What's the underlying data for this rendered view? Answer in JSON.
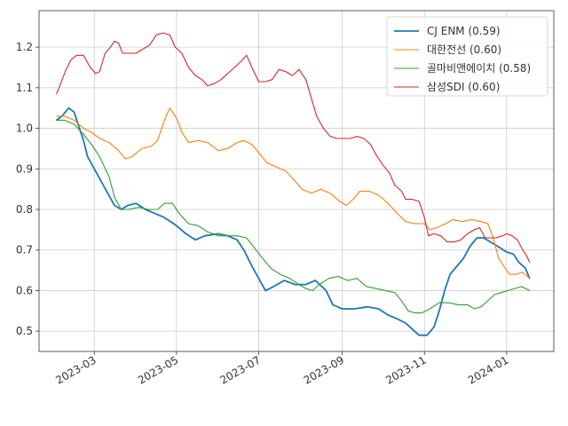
{
  "chart_data": {
    "type": "line",
    "title": "",
    "xlabel": "",
    "ylabel": "",
    "xlim": [
      "2023-01-19",
      "2024-02-05"
    ],
    "ylim": [
      0.45,
      1.29
    ],
    "grid": true,
    "legend_position": "top-right",
    "x_ticks": [
      {
        "date": "2023-03-01",
        "label": "2023-03"
      },
      {
        "date": "2023-05-01",
        "label": "2023-05"
      },
      {
        "date": "2023-07-01",
        "label": "2023-07"
      },
      {
        "date": "2023-09-01",
        "label": "2023-09"
      },
      {
        "date": "2023-11-01",
        "label": "2023-11"
      },
      {
        "date": "2024-01-01",
        "label": "2024-01"
      }
    ],
    "y_ticks": [
      {
        "value": 0.5,
        "label": "0.5"
      },
      {
        "value": 0.6,
        "label": "0.6"
      },
      {
        "value": 0.7,
        "label": "0.7"
      },
      {
        "value": 0.8,
        "label": "0.8"
      },
      {
        "value": 0.9,
        "label": "0.9"
      },
      {
        "value": 1.0,
        "label": "1.0"
      },
      {
        "value": 1.1,
        "label": "1.1"
      },
      {
        "value": 1.2,
        "label": "1.2"
      }
    ],
    "series": [
      {
        "name": "CJ ENM (0.59)",
        "color": "#1f77b4",
        "points": [
          [
            "2023-02-01",
            1.02
          ],
          [
            "2023-02-05",
            1.03
          ],
          [
            "2023-02-10",
            1.05
          ],
          [
            "2023-02-14",
            1.04
          ],
          [
            "2023-02-17",
            1.01
          ],
          [
            "2023-02-21",
            0.97
          ],
          [
            "2023-02-24",
            0.93
          ],
          [
            "2023-03-01",
            0.9
          ],
          [
            "2023-03-06",
            0.87
          ],
          [
            "2023-03-11",
            0.84
          ],
          [
            "2023-03-16",
            0.81
          ],
          [
            "2023-03-21",
            0.8
          ],
          [
            "2023-03-26",
            0.81
          ],
          [
            "2023-04-01",
            0.815
          ],
          [
            "2023-04-08",
            0.8
          ],
          [
            "2023-04-15",
            0.79
          ],
          [
            "2023-04-22",
            0.78
          ],
          [
            "2023-05-01",
            0.76
          ],
          [
            "2023-05-08",
            0.74
          ],
          [
            "2023-05-15",
            0.725
          ],
          [
            "2023-05-22",
            0.735
          ],
          [
            "2023-06-01",
            0.74
          ],
          [
            "2023-06-08",
            0.735
          ],
          [
            "2023-06-15",
            0.725
          ],
          [
            "2023-06-20",
            0.7
          ],
          [
            "2023-06-26",
            0.66
          ],
          [
            "2023-07-01",
            0.63
          ],
          [
            "2023-07-06",
            0.6
          ],
          [
            "2023-07-12",
            0.61
          ],
          [
            "2023-07-20",
            0.625
          ],
          [
            "2023-07-28",
            0.615
          ],
          [
            "2023-08-05",
            0.615
          ],
          [
            "2023-08-12",
            0.625
          ],
          [
            "2023-08-20",
            0.6
          ],
          [
            "2023-08-25",
            0.565
          ],
          [
            "2023-09-01",
            0.555
          ],
          [
            "2023-09-10",
            0.555
          ],
          [
            "2023-09-20",
            0.56
          ],
          [
            "2023-09-28",
            0.555
          ],
          [
            "2023-10-05",
            0.54
          ],
          [
            "2023-10-12",
            0.53
          ],
          [
            "2023-10-18",
            0.52
          ],
          [
            "2023-10-23",
            0.505
          ],
          [
            "2023-10-28",
            0.49
          ],
          [
            "2023-11-03",
            0.49
          ],
          [
            "2023-11-08",
            0.51
          ],
          [
            "2023-11-12",
            0.55
          ],
          [
            "2023-11-16",
            0.6
          ],
          [
            "2023-11-20",
            0.64
          ],
          [
            "2023-11-25",
            0.66
          ],
          [
            "2023-11-30",
            0.68
          ],
          [
            "2023-12-05",
            0.71
          ],
          [
            "2023-12-10",
            0.73
          ],
          [
            "2023-12-15",
            0.73
          ],
          [
            "2023-12-20",
            0.72
          ],
          [
            "2023-12-25",
            0.71
          ],
          [
            "2024-01-01",
            0.695
          ],
          [
            "2024-01-06",
            0.69
          ],
          [
            "2024-01-10",
            0.67
          ],
          [
            "2024-01-15",
            0.655
          ],
          [
            "2024-01-18",
            0.63
          ]
        ]
      },
      {
        "name": "대한전선 (0.60)",
        "color": "#ff7f0e",
        "points": [
          [
            "2023-02-01",
            1.03
          ],
          [
            "2023-02-07",
            1.03
          ],
          [
            "2023-02-14",
            1.02
          ],
          [
            "2023-02-21",
            1.0
          ],
          [
            "2023-02-27",
            0.99
          ],
          [
            "2023-03-05",
            0.975
          ],
          [
            "2023-03-12",
            0.965
          ],
          [
            "2023-03-19",
            0.945
          ],
          [
            "2023-03-24",
            0.925
          ],
          [
            "2023-03-29",
            0.93
          ],
          [
            "2023-04-05",
            0.95
          ],
          [
            "2023-04-12",
            0.955
          ],
          [
            "2023-04-17",
            0.97
          ],
          [
            "2023-04-22",
            1.02
          ],
          [
            "2023-04-26",
            1.05
          ],
          [
            "2023-05-01",
            1.025
          ],
          [
            "2023-05-05",
            0.99
          ],
          [
            "2023-05-10",
            0.965
          ],
          [
            "2023-05-17",
            0.97
          ],
          [
            "2023-05-24",
            0.965
          ],
          [
            "2023-06-01",
            0.945
          ],
          [
            "2023-06-08",
            0.95
          ],
          [
            "2023-06-15",
            0.965
          ],
          [
            "2023-06-20",
            0.97
          ],
          [
            "2023-06-26",
            0.96
          ],
          [
            "2023-07-01",
            0.94
          ],
          [
            "2023-07-07",
            0.915
          ],
          [
            "2023-07-14",
            0.905
          ],
          [
            "2023-07-21",
            0.895
          ],
          [
            "2023-07-28",
            0.87
          ],
          [
            "2023-08-02",
            0.85
          ],
          [
            "2023-08-09",
            0.84
          ],
          [
            "2023-08-16",
            0.85
          ],
          [
            "2023-08-23",
            0.84
          ],
          [
            "2023-08-30",
            0.82
          ],
          [
            "2023-09-04",
            0.81
          ],
          [
            "2023-09-09",
            0.825
          ],
          [
            "2023-09-14",
            0.845
          ],
          [
            "2023-09-21",
            0.845
          ],
          [
            "2023-09-28",
            0.835
          ],
          [
            "2023-10-05",
            0.815
          ],
          [
            "2023-10-12",
            0.79
          ],
          [
            "2023-10-18",
            0.77
          ],
          [
            "2023-10-25",
            0.765
          ],
          [
            "2023-11-01",
            0.765
          ],
          [
            "2023-11-05",
            0.75
          ],
          [
            "2023-11-10",
            0.755
          ],
          [
            "2023-11-17",
            0.765
          ],
          [
            "2023-11-22",
            0.775
          ],
          [
            "2023-11-29",
            0.77
          ],
          [
            "2023-12-06",
            0.775
          ],
          [
            "2023-12-13",
            0.77
          ],
          [
            "2023-12-18",
            0.765
          ],
          [
            "2023-12-22",
            0.73
          ],
          [
            "2023-12-26",
            0.68
          ],
          [
            "2023-12-30",
            0.66
          ],
          [
            "2024-01-03",
            0.64
          ],
          [
            "2024-01-08",
            0.64
          ],
          [
            "2024-01-13",
            0.645
          ],
          [
            "2024-01-18",
            0.63
          ]
        ]
      },
      {
        "name": "골마비앤에이치 (0.58)",
        "color": "#2ca02c",
        "points": [
          [
            "2023-02-01",
            1.02
          ],
          [
            "2023-02-07",
            1.02
          ],
          [
            "2023-02-14",
            1.01
          ],
          [
            "2023-02-21",
            0.985
          ],
          [
            "2023-02-27",
            0.96
          ],
          [
            "2023-03-05",
            0.93
          ],
          [
            "2023-03-12",
            0.88
          ],
          [
            "2023-03-16",
            0.83
          ],
          [
            "2023-03-21",
            0.8
          ],
          [
            "2023-03-26",
            0.8
          ],
          [
            "2023-04-03",
            0.805
          ],
          [
            "2023-04-10",
            0.8
          ],
          [
            "2023-04-17",
            0.8
          ],
          [
            "2023-04-22",
            0.815
          ],
          [
            "2023-04-28",
            0.815
          ],
          [
            "2023-05-03",
            0.79
          ],
          [
            "2023-05-10",
            0.765
          ],
          [
            "2023-05-17",
            0.76
          ],
          [
            "2023-05-24",
            0.745
          ],
          [
            "2023-06-01",
            0.735
          ],
          [
            "2023-06-08",
            0.735
          ],
          [
            "2023-06-15",
            0.735
          ],
          [
            "2023-06-22",
            0.73
          ],
          [
            "2023-06-29",
            0.7
          ],
          [
            "2023-07-05",
            0.675
          ],
          [
            "2023-07-10",
            0.655
          ],
          [
            "2023-07-17",
            0.64
          ],
          [
            "2023-07-24",
            0.63
          ],
          [
            "2023-07-31",
            0.615
          ],
          [
            "2023-08-05",
            0.605
          ],
          [
            "2023-08-10",
            0.6
          ],
          [
            "2023-08-15",
            0.615
          ],
          [
            "2023-08-22",
            0.63
          ],
          [
            "2023-08-29",
            0.635
          ],
          [
            "2023-09-05",
            0.625
          ],
          [
            "2023-09-12",
            0.63
          ],
          [
            "2023-09-19",
            0.61
          ],
          [
            "2023-09-26",
            0.605
          ],
          [
            "2023-10-03",
            0.6
          ],
          [
            "2023-10-10",
            0.595
          ],
          [
            "2023-10-15",
            0.575
          ],
          [
            "2023-10-20",
            0.55
          ],
          [
            "2023-10-25",
            0.545
          ],
          [
            "2023-10-30",
            0.545
          ],
          [
            "2023-11-05",
            0.555
          ],
          [
            "2023-11-12",
            0.57
          ],
          [
            "2023-11-19",
            0.57
          ],
          [
            "2023-11-26",
            0.565
          ],
          [
            "2023-12-03",
            0.565
          ],
          [
            "2023-12-08",
            0.555
          ],
          [
            "2023-12-13",
            0.56
          ],
          [
            "2023-12-18",
            0.575
          ],
          [
            "2023-12-23",
            0.59
          ],
          [
            "2023-12-28",
            0.595
          ],
          [
            "2024-01-02",
            0.6
          ],
          [
            "2024-01-07",
            0.605
          ],
          [
            "2024-01-12",
            0.61
          ],
          [
            "2024-01-18",
            0.6
          ]
        ]
      },
      {
        "name": "삼성SDI (0.60)",
        "color": "#d62728",
        "points": [
          [
            "2023-02-01",
            1.085
          ],
          [
            "2023-02-04",
            1.11
          ],
          [
            "2023-02-08",
            1.145
          ],
          [
            "2023-02-12",
            1.17
          ],
          [
            "2023-02-16",
            1.18
          ],
          [
            "2023-02-21",
            1.18
          ],
          [
            "2023-02-26",
            1.15
          ],
          [
            "2023-03-02",
            1.135
          ],
          [
            "2023-03-05",
            1.14
          ],
          [
            "2023-03-09",
            1.185
          ],
          [
            "2023-03-13",
            1.2
          ],
          [
            "2023-03-16",
            1.215
          ],
          [
            "2023-03-19",
            1.21
          ],
          [
            "2023-03-22",
            1.185
          ],
          [
            "2023-03-27",
            1.185
          ],
          [
            "2023-04-01",
            1.185
          ],
          [
            "2023-04-06",
            1.195
          ],
          [
            "2023-04-11",
            1.205
          ],
          [
            "2023-04-16",
            1.23
          ],
          [
            "2023-04-21",
            1.235
          ],
          [
            "2023-04-26",
            1.23
          ],
          [
            "2023-04-30",
            1.2
          ],
          [
            "2023-05-05",
            1.185
          ],
          [
            "2023-05-10",
            1.15
          ],
          [
            "2023-05-15",
            1.13
          ],
          [
            "2023-05-20",
            1.12
          ],
          [
            "2023-05-24",
            1.105
          ],
          [
            "2023-05-29",
            1.11
          ],
          [
            "2023-06-03",
            1.12
          ],
          [
            "2023-06-08",
            1.135
          ],
          [
            "2023-06-13",
            1.15
          ],
          [
            "2023-06-18",
            1.165
          ],
          [
            "2023-06-22",
            1.18
          ],
          [
            "2023-06-26",
            1.15
          ],
          [
            "2023-07-01",
            1.115
          ],
          [
            "2023-07-06",
            1.115
          ],
          [
            "2023-07-11",
            1.12
          ],
          [
            "2023-07-16",
            1.145
          ],
          [
            "2023-07-21",
            1.14
          ],
          [
            "2023-07-26",
            1.13
          ],
          [
            "2023-07-31",
            1.145
          ],
          [
            "2023-08-05",
            1.12
          ],
          [
            "2023-08-09",
            1.075
          ],
          [
            "2023-08-13",
            1.03
          ],
          [
            "2023-08-18",
            1.0
          ],
          [
            "2023-08-23",
            0.98
          ],
          [
            "2023-08-28",
            0.975
          ],
          [
            "2023-09-02",
            0.975
          ],
          [
            "2023-09-07",
            0.975
          ],
          [
            "2023-09-12",
            0.98
          ],
          [
            "2023-09-17",
            0.975
          ],
          [
            "2023-09-22",
            0.96
          ],
          [
            "2023-09-26",
            0.935
          ],
          [
            "2023-10-01",
            0.91
          ],
          [
            "2023-10-06",
            0.89
          ],
          [
            "2023-10-10",
            0.86
          ],
          [
            "2023-10-15",
            0.845
          ],
          [
            "2023-10-18",
            0.825
          ],
          [
            "2023-10-23",
            0.825
          ],
          [
            "2023-10-28",
            0.82
          ],
          [
            "2023-11-01",
            0.78
          ],
          [
            "2023-11-04",
            0.735
          ],
          [
            "2023-11-08",
            0.74
          ],
          [
            "2023-11-13",
            0.735
          ],
          [
            "2023-11-18",
            0.72
          ],
          [
            "2023-11-23",
            0.72
          ],
          [
            "2023-11-28",
            0.725
          ],
          [
            "2023-12-03",
            0.74
          ],
          [
            "2023-12-08",
            0.75
          ],
          [
            "2023-12-12",
            0.755
          ],
          [
            "2023-12-16",
            0.73
          ],
          [
            "2023-12-20",
            0.73
          ],
          [
            "2023-12-24",
            0.73
          ],
          [
            "2023-12-29",
            0.735
          ],
          [
            "2024-01-01",
            0.74
          ],
          [
            "2024-01-05",
            0.735
          ],
          [
            "2024-01-09",
            0.725
          ],
          [
            "2024-01-13",
            0.7
          ],
          [
            "2024-01-16",
            0.685
          ],
          [
            "2024-01-18",
            0.67
          ]
        ]
      }
    ]
  }
}
